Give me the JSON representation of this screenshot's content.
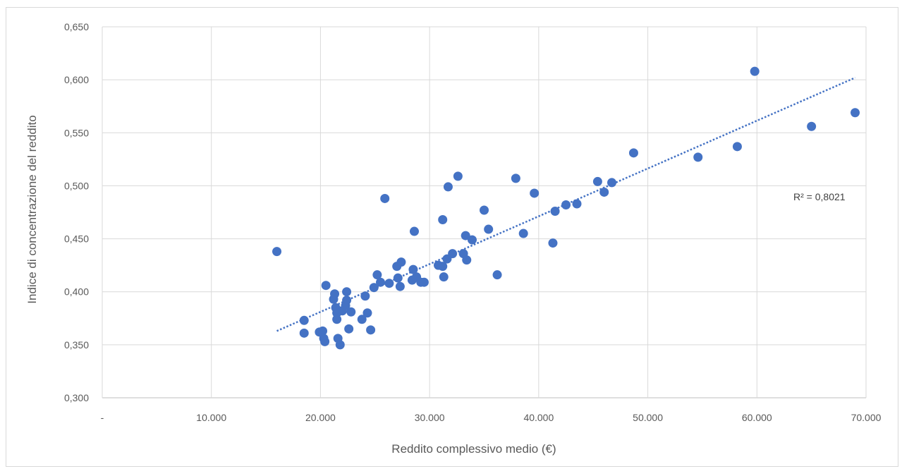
{
  "chart_data": {
    "type": "scatter",
    "title": "",
    "xlabel": "Reddito complessivo medio (€)",
    "ylabel": "Indice di concentrazione del reddito",
    "xlim": [
      0,
      70000
    ],
    "ylim": [
      0.3,
      0.65
    ],
    "x_ticks": [
      "-",
      "10.000",
      "20.000",
      "30.000",
      "40.000",
      "50.000",
      "60.000",
      "70.000"
    ],
    "y_ticks": [
      "0,300",
      "0,350",
      "0,400",
      "0,450",
      "0,500",
      "0,550",
      "0,600",
      "0,650"
    ],
    "grid": true,
    "marker_color": "#4472c4",
    "trendline": {
      "type": "linear",
      "style": "dotted",
      "color": "#4472c4",
      "x_range": [
        16000,
        69000
      ],
      "y_range": [
        0.363,
        0.602
      ],
      "label": "R² = 0,8021"
    },
    "points": [
      [
        16000,
        0.438
      ],
      [
        18500,
        0.373
      ],
      [
        18500,
        0.361
      ],
      [
        19900,
        0.362
      ],
      [
        20200,
        0.363
      ],
      [
        20300,
        0.356
      ],
      [
        20400,
        0.353
      ],
      [
        20500,
        0.406
      ],
      [
        21200,
        0.393
      ],
      [
        21300,
        0.398
      ],
      [
        21400,
        0.385
      ],
      [
        21500,
        0.374
      ],
      [
        21500,
        0.38
      ],
      [
        21600,
        0.356
      ],
      [
        21800,
        0.35
      ],
      [
        22000,
        0.382
      ],
      [
        22300,
        0.387
      ],
      [
        22400,
        0.4
      ],
      [
        22400,
        0.392
      ],
      [
        22600,
        0.365
      ],
      [
        22800,
        0.381
      ],
      [
        23800,
        0.374
      ],
      [
        24100,
        0.396
      ],
      [
        24300,
        0.38
      ],
      [
        24600,
        0.364
      ],
      [
        24900,
        0.404
      ],
      [
        25200,
        0.416
      ],
      [
        25500,
        0.409
      ],
      [
        25900,
        0.488
      ],
      [
        26300,
        0.408
      ],
      [
        27000,
        0.424
      ],
      [
        27100,
        0.413
      ],
      [
        27300,
        0.405
      ],
      [
        27400,
        0.428
      ],
      [
        28400,
        0.411
      ],
      [
        28500,
        0.421
      ],
      [
        28600,
        0.457
      ],
      [
        28800,
        0.414
      ],
      [
        29200,
        0.409
      ],
      [
        29500,
        0.409
      ],
      [
        30800,
        0.425
      ],
      [
        31200,
        0.424
      ],
      [
        31200,
        0.468
      ],
      [
        31300,
        0.414
      ],
      [
        31600,
        0.431
      ],
      [
        31700,
        0.499
      ],
      [
        32100,
        0.436
      ],
      [
        32600,
        0.509
      ],
      [
        33100,
        0.436
      ],
      [
        33300,
        0.453
      ],
      [
        33400,
        0.43
      ],
      [
        33900,
        0.449
      ],
      [
        35000,
        0.477
      ],
      [
        35400,
        0.459
      ],
      [
        36200,
        0.416
      ],
      [
        37900,
        0.507
      ],
      [
        38600,
        0.455
      ],
      [
        39600,
        0.493
      ],
      [
        41300,
        0.446
      ],
      [
        41500,
        0.476
      ],
      [
        42500,
        0.482
      ],
      [
        43500,
        0.483
      ],
      [
        45400,
        0.504
      ],
      [
        46000,
        0.494
      ],
      [
        46700,
        0.503
      ],
      [
        48700,
        0.531
      ],
      [
        54600,
        0.527
      ],
      [
        58200,
        0.537
      ],
      [
        59800,
        0.608
      ],
      [
        65000,
        0.556
      ],
      [
        69000,
        0.569
      ]
    ]
  }
}
